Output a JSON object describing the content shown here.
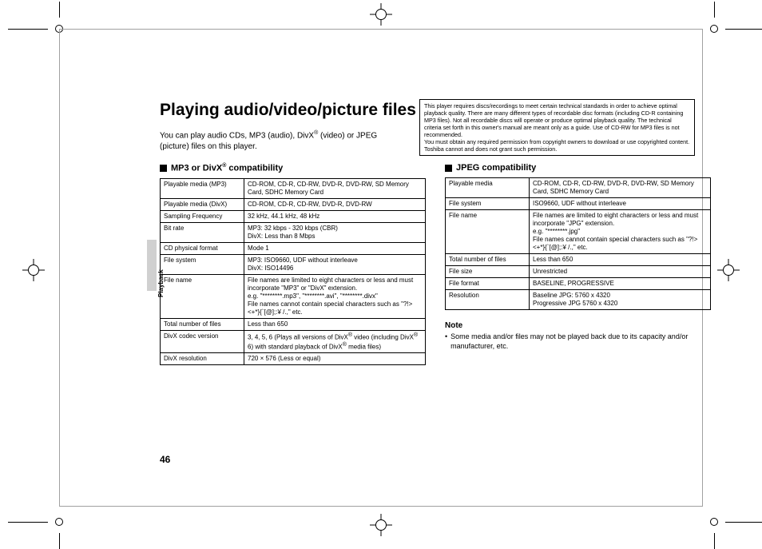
{
  "page": {
    "title": "Playing audio/video/picture files",
    "intro": "You can play audio CDs, MP3 (audio), DivX® (video) or JPEG (picture) files on this player.",
    "side_tab_label": "Playback",
    "page_number": "46"
  },
  "notice_box": "This player requires discs/recordings to meet certain technical standards in order to achieve optimal playback quality. There are many different types of recordable disc formats (including CD-R containing MP3 files). Not all recordable discs will operate or produce optimal playback quality. The technical criteria set forth in this owner's manual are meant only as a guide. Use of CD-RW for MP3 files is not recommended.\nYou must obtain any required permission from copyright owners to download or use copyrighted content. Toshiba cannot and does not grant such permission.",
  "left_section": {
    "title_prefix": "MP3 or DivX",
    "title_sup": "®",
    "title_suffix": " compatibility",
    "rows": [
      [
        "Playable media (MP3)",
        "CD-ROM, CD-R, CD-RW, DVD-R, DVD-RW, SD Memory Card, SDHC Memory Card"
      ],
      [
        "Playable media (DivX)",
        "CD-ROM, CD-R, CD-RW, DVD-R, DVD-RW"
      ],
      [
        "Sampling Frequency",
        "32 kHz, 44.1 kHz, 48 kHz"
      ],
      [
        "Bit rate",
        "MP3:  32 kbps - 320 kbps (CBR)\nDivX:  Less than 8 Mbps"
      ],
      [
        "CD physical format",
        "Mode 1"
      ],
      [
        "File system",
        "MP3:  ISO9660, UDF without interleave\nDivX: ISO14496"
      ],
      [
        "File name",
        "File names are limited to eight characters or less and must incorporate \"MP3\" or \"DivX\" extension.\ne.g. \"********.mp3\", \"********.avi\", \"********.divx\"\nFile names cannot contain special characters such as \"?!><+*}{`[@];:¥ /.,\" etc."
      ],
      [
        "Total number of files",
        "Less than 650"
      ],
      [
        "DivX codec version",
        "3, 4, 5, 6 (Plays all versions of DivX® video (including DivX® 6) with standard playback of DivX® media files)"
      ],
      [
        "DivX resolution",
        "720 × 576 (Less or equal)"
      ]
    ]
  },
  "right_section": {
    "title": "JPEG compatibility",
    "rows": [
      [
        "Playable media",
        "CD-ROM, CD-R, CD-RW, DVD-R, DVD-RW, SD Memory Card, SDHC Memory Card"
      ],
      [
        "File system",
        "ISO9660, UDF without interleave"
      ],
      [
        "File name",
        "File names are limited to eight characters or less and must incorporate \"JPG\" extension.\ne.g. \"********.jpg\"\nFile names cannot contain special characters such as \"?!><+*}{`[@];:¥ /.,\" etc."
      ],
      [
        "Total number of files",
        "Less than 650"
      ],
      [
        "File size",
        "Unrestricted"
      ],
      [
        "File format",
        "BASELINE, PROGRESSIVE"
      ],
      [
        "Resolution",
        "Baseline JPG: 5760 x 4320\nProgressive JPG 5760 x 4320"
      ]
    ],
    "note_heading": "Note",
    "note_item": "Some media and/or files may not be played back due to its capacity and/or manufacturer, etc."
  }
}
